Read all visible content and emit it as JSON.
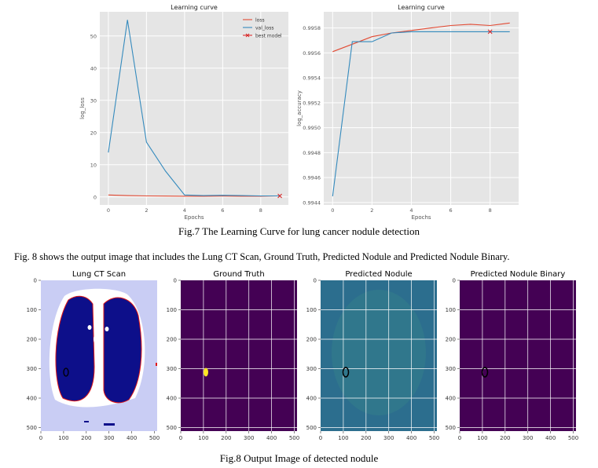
{
  "fig7": {
    "caption": "Fig.7 The Learning Curve for lung cancer nodule detection",
    "charts": [
      {
        "title": "Learning curve",
        "xlabel": "Epochs",
        "ylabel": "log_loss",
        "x_ticks": [
          "0",
          "2",
          "4",
          "6",
          "8"
        ],
        "y_ticks": [
          "0",
          "10",
          "20",
          "30",
          "40",
          "50"
        ],
        "legend": [
          "loss",
          "val_loss",
          "best model"
        ]
      },
      {
        "title": "Learning curve",
        "xlabel": "Epochs",
        "ylabel": "log_accuracy",
        "x_ticks": [
          "0",
          "2",
          "4",
          "6",
          "8"
        ],
        "y_ticks": [
          "0.9944",
          "0.9946",
          "0.9948",
          "0.9950",
          "0.9952",
          "0.9954",
          "0.9956",
          "0.9958"
        ]
      }
    ]
  },
  "paragraph": "Fig. 8 shows the output image that includes the Lung CT Scan, Ground Truth, Predicted Nodule and Predicted Nodule Binary.",
  "fig8": {
    "caption": "Fig.8 Output Image of detected nodule",
    "panels": [
      {
        "title": "Lung CT Scan"
      },
      {
        "title": "Ground Truth"
      },
      {
        "title": "Predicted Nodule"
      },
      {
        "title": "Predicted Nodule Binary"
      }
    ],
    "x_ticks": [
      "0",
      "100",
      "200",
      "300",
      "400",
      "500"
    ],
    "y_ticks": [
      "0",
      "100",
      "200",
      "300",
      "400",
      "500"
    ]
  },
  "colors": {
    "loss": "#e24a33",
    "val_loss": "#348abd",
    "plot_bg": "#e5e5e5",
    "viridis_dark": "#440154",
    "predicted_bg": "#2c6e8e",
    "nodule_yellow": "#fde725"
  },
  "chart_data": [
    {
      "type": "line",
      "title": "Learning curve",
      "xlabel": "Epochs",
      "ylabel": "log_loss",
      "xlim": [
        -0.45,
        9.45
      ],
      "ylim": [
        -2.5,
        57.5
      ],
      "x": [
        0,
        1,
        2,
        3,
        4,
        5,
        6,
        7,
        8,
        9
      ],
      "series": [
        {
          "name": "loss",
          "values": [
            0.6,
            0.4,
            0.3,
            0.25,
            0.2,
            0.2,
            0.25,
            0.2,
            0.2,
            0.3
          ]
        },
        {
          "name": "val_loss",
          "values": [
            13.8,
            55.0,
            17.0,
            8.0,
            0.6,
            0.4,
            0.5,
            0.4,
            0.3,
            0.3
          ]
        }
      ],
      "best_model": {
        "x": 9,
        "y": 0.3
      },
      "legend_position": "top-right"
    },
    {
      "type": "line",
      "title": "Learning curve",
      "xlabel": "Epochs",
      "ylabel": "log_accuracy",
      "xlim": [
        -0.45,
        9.45
      ],
      "ylim": [
        0.99438,
        0.99593
      ],
      "x": [
        0,
        1,
        2,
        3,
        4,
        5,
        6,
        7,
        8,
        9
      ],
      "series": [
        {
          "name": "loss",
          "values": [
            0.99561,
            0.99567,
            0.99573,
            0.99576,
            0.99578,
            0.9958,
            0.99582,
            0.99583,
            0.99582,
            0.99584
          ]
        },
        {
          "name": "val_loss",
          "values": [
            0.99445,
            0.99569,
            0.99569,
            0.99576,
            0.99577,
            0.99577,
            0.99577,
            0.99577,
            0.99577,
            0.99577
          ]
        }
      ],
      "best_model": {
        "x": 8,
        "y": 0.99577
      }
    }
  ]
}
